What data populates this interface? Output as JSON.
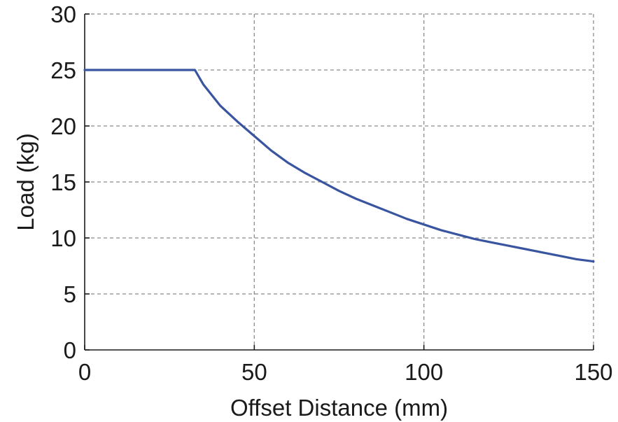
{
  "chart_data": {
    "type": "line",
    "title": "",
    "xlabel": "Offset Distance (mm)",
    "ylabel": "Load (kg)",
    "xlim": [
      0,
      150
    ],
    "ylim": [
      0,
      30
    ],
    "xticks": [
      0,
      50,
      100,
      150
    ],
    "yticks": [
      0,
      5,
      10,
      15,
      20,
      25,
      30
    ],
    "xtick_labels": [
      "0",
      "50",
      "100",
      "150"
    ],
    "ytick_labels": [
      "0",
      "5",
      "10",
      "15",
      "20",
      "25",
      "30"
    ],
    "grid": true,
    "legend": "none",
    "series": [
      {
        "color": "#3a55a0",
        "x": [
          0,
          10,
          20,
          30,
          32.5,
          35,
          40,
          45,
          50,
          55,
          60,
          65,
          70,
          75,
          80,
          85,
          90,
          95,
          100,
          105,
          110,
          115,
          120,
          125,
          130,
          135,
          140,
          145,
          150
        ],
        "y": [
          25,
          25,
          25,
          25,
          25,
          23.7,
          21.8,
          20.4,
          19.1,
          17.8,
          16.7,
          15.8,
          15.0,
          14.2,
          13.5,
          12.9,
          12.3,
          11.7,
          11.2,
          10.7,
          10.3,
          9.9,
          9.6,
          9.3,
          9.0,
          8.7,
          8.4,
          8.1,
          7.9
        ]
      }
    ]
  }
}
